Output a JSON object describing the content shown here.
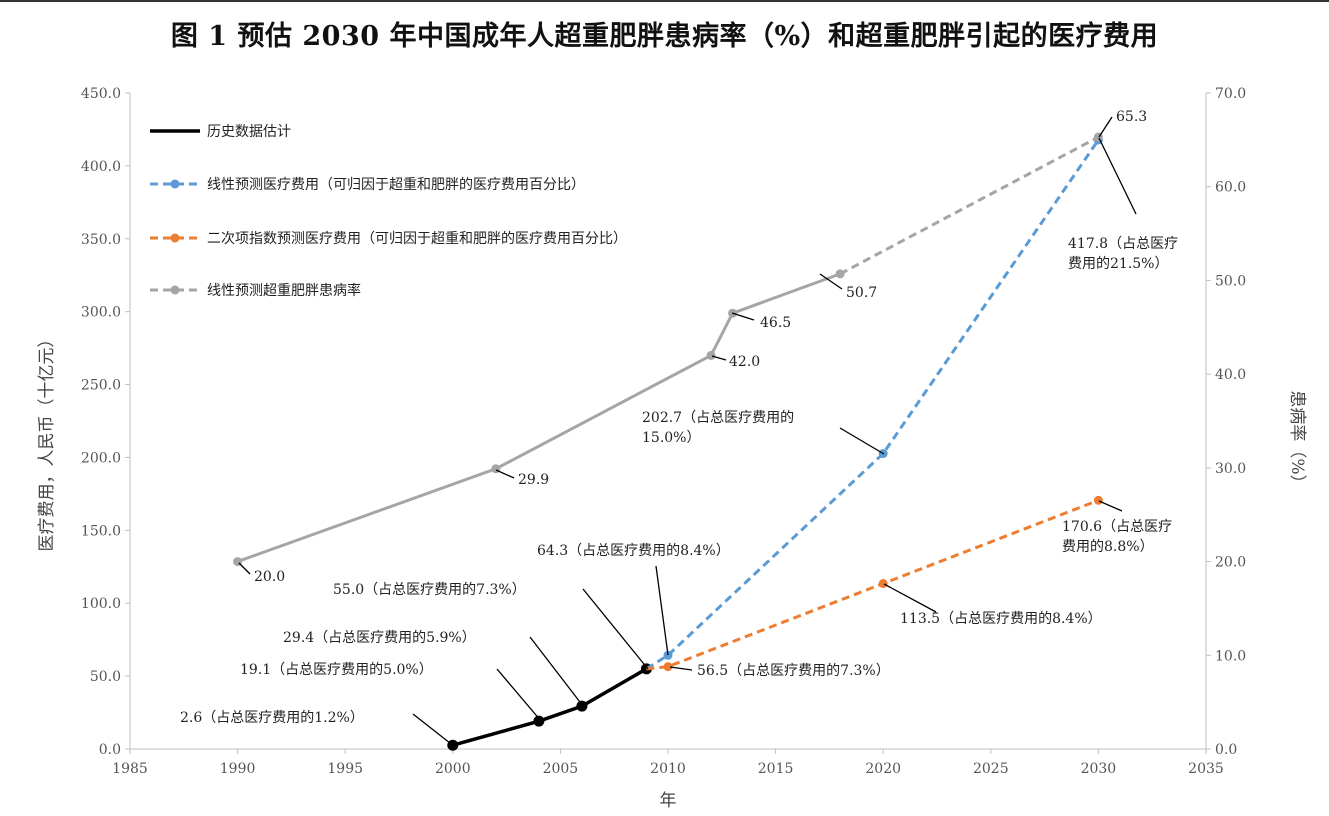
{
  "chart_data": {
    "type": "line",
    "title": "图 1  预估 2030 年中国成年人超重肥胖患病率（%）和超重肥胖引起的医疗费用",
    "xlabel": "年",
    "ylabel_left": "医疗费用，人民币（十亿元）",
    "ylabel_right": "患病率（%）",
    "x_range": [
      1985,
      2035
    ],
    "x_ticks": [
      "1985",
      "1990",
      "1995",
      "2000",
      "2005",
      "2010",
      "2015",
      "2020",
      "2025",
      "2030",
      "2035"
    ],
    "y_left_range": [
      0,
      450
    ],
    "y_left_ticks": [
      "0.0",
      "50.0",
      "100.0",
      "150.0",
      "200.0",
      "250.0",
      "300.0",
      "350.0",
      "400.0",
      "450.0"
    ],
    "y_right_range": [
      0,
      70
    ],
    "y_right_ticks": [
      "0.0",
      "10.0",
      "20.0",
      "30.0",
      "40.0",
      "50.0",
      "60.0",
      "70.0"
    ],
    "legend_position": "top-left",
    "grid": false,
    "colors": {
      "historical": "#000000",
      "linear_cost": "#5b9bd5",
      "quad_cost": "#ed7d31",
      "prevalence": "#a5a5a5"
    },
    "series": [
      {
        "name": "历史数据估计",
        "axis": "left",
        "style": "solid",
        "points": [
          [
            2000,
            2.6
          ],
          [
            2004,
            19.1
          ],
          [
            2006,
            29.4
          ],
          [
            2009,
            55.0
          ]
        ]
      },
      {
        "name": "线性预测医疗费用（可归因于超重和肥胖的医疗费用百分比）",
        "axis": "left",
        "style": "dashed",
        "points": [
          [
            2009,
            55.0
          ],
          [
            2010,
            64.3
          ],
          [
            2020,
            202.7
          ],
          [
            2030,
            417.8
          ]
        ]
      },
      {
        "name": "二次项指数预测医疗费用（可归因于超重和肥胖的医疗费用百分比）",
        "axis": "left",
        "style": "dashed",
        "points": [
          [
            2009,
            55.0
          ],
          [
            2010,
            56.5
          ],
          [
            2020,
            113.5
          ],
          [
            2030,
            170.6
          ]
        ]
      },
      {
        "name": "线性预测超重肥胖患病率",
        "axis": "right",
        "style": "mixed",
        "points": [
          [
            1990,
            20.0
          ],
          [
            2002,
            29.9
          ],
          [
            2012,
            42.0
          ],
          [
            2013,
            46.5
          ],
          [
            2018,
            50.7
          ],
          [
            2030,
            65.3
          ]
        ]
      }
    ],
    "annotations": [
      {
        "lines": [
          "2.6（占总医疗费用的1.2%）"
        ]
      },
      {
        "lines": [
          "19.1（占总医疗费用的5.0%）"
        ]
      },
      {
        "lines": [
          "29.4（占总医疗费用的5.9%）"
        ]
      },
      {
        "lines": [
          "55.0（占总医疗费用的7.3%）"
        ]
      },
      {
        "lines": [
          "64.3（占总医疗费用的8.4%）"
        ]
      },
      {
        "lines": [
          "56.5（占总医疗费用的7.3%）"
        ]
      },
      {
        "lines": [
          "202.7（占总医疗费用的",
          "15.0%）"
        ]
      },
      {
        "lines": [
          "113.5（占总医疗费用的8.4%）"
        ]
      },
      {
        "lines": [
          "417.8（占总医疗",
          "费用的21.5%）"
        ]
      },
      {
        "lines": [
          "170.6（占总医疗",
          "费用的8.8%）"
        ]
      },
      {
        "lines": [
          "20.0"
        ]
      },
      {
        "lines": [
          "29.9"
        ]
      },
      {
        "lines": [
          "42.0"
        ]
      },
      {
        "lines": [
          "46.5"
        ]
      },
      {
        "lines": [
          "50.7"
        ]
      },
      {
        "lines": [
          "65.3"
        ]
      }
    ]
  }
}
